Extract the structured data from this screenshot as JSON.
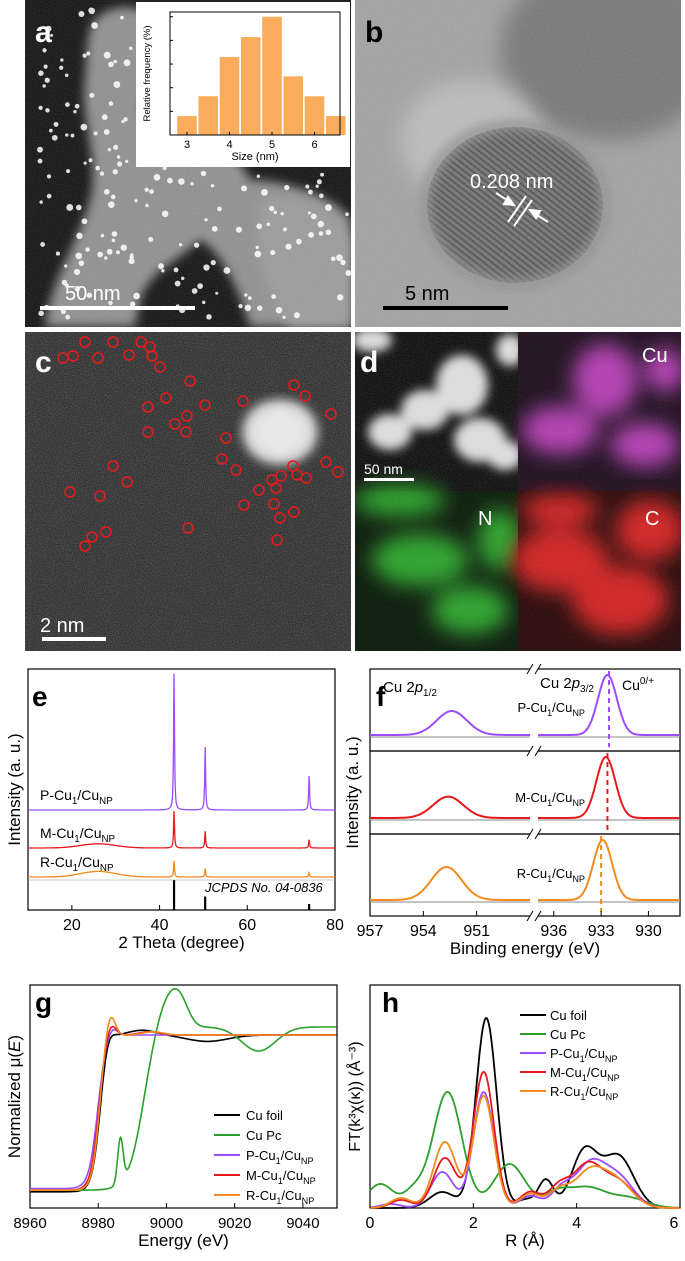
{
  "panels": {
    "a": {
      "letter": "a",
      "scalebar": "50 nm"
    },
    "b": {
      "letter": "b",
      "scalebar": "5 nm",
      "lattice": "0.208 nm"
    },
    "c": {
      "letter": "c",
      "scalebar": "2 nm"
    },
    "d": {
      "letter": "d",
      "scalebar": "50 nm",
      "maps": [
        "Cu",
        "N",
        "C"
      ]
    },
    "e": {
      "letter": "e"
    },
    "f": {
      "letter": "f"
    },
    "g": {
      "letter": "g"
    },
    "h": {
      "letter": "h"
    }
  },
  "colors": {
    "cu_foil": "#000000",
    "cu_pc": "#2ca02c",
    "p_sample": "#9b4dff",
    "m_sample": "#e8191c",
    "r_sample": "#f28a1e",
    "hist_bar": "#f9ad5c",
    "circle": "#e8191c"
  },
  "chart_data": [
    {
      "id": "inset-histogram",
      "type": "bar",
      "categories": [
        3,
        3.5,
        4,
        4.5,
        5,
        5.5,
        6,
        6.5
      ],
      "values": [
        4,
        8.2,
        16.5,
        20.7,
        25,
        12.4,
        8.2,
        4
      ],
      "xlabel": "Size (nm)",
      "ylabel": "Relative frequency (%)",
      "xlim": [
        2.6,
        6.6
      ],
      "ylim": [
        0,
        26
      ],
      "xticks": [
        3,
        4,
        5,
        6
      ],
      "yticks": [
        0,
        5,
        10,
        15,
        20,
        25
      ]
    },
    {
      "id": "xrd",
      "type": "line",
      "xlabel": "2 Theta (degree)",
      "ylabel": "Intensity (a. u.)",
      "xlim": [
        10,
        80
      ],
      "xticks": [
        20,
        40,
        60,
        80
      ],
      "series": [
        {
          "name_main": "P-Cu",
          "sub1": "1",
          "mid": "/Cu",
          "sub2": "NP",
          "color": "#9b4dff",
          "baseline": 0.0,
          "peaks": [
            {
              "x": 43.3,
              "h": 1.0
            },
            {
              "x": 50.4,
              "h": 0.45
            },
            {
              "x": 74.1,
              "h": 0.25
            }
          ]
        },
        {
          "name_main": "M-Cu",
          "sub1": "1",
          "mid": "/Cu",
          "sub2": "NP",
          "color": "#e8191c",
          "baseline": 0.0,
          "peaks": [
            {
              "x": 43.3,
              "h": 0.27
            },
            {
              "x": 50.4,
              "h": 0.12
            },
            {
              "x": 74.1,
              "h": 0.06
            }
          ],
          "hump": {
            "x": 26,
            "h": 0.03
          }
        },
        {
          "name_main": "R-Cu",
          "sub1": "1",
          "mid": "/Cu",
          "sub2": "NP",
          "color": "#f28a1e",
          "baseline": 0.0,
          "peaks": [
            {
              "x": 43.3,
              "h": 0.12
            },
            {
              "x": 50.4,
              "h": 0.06
            },
            {
              "x": 74.1,
              "h": 0.03
            }
          ],
          "hump": {
            "x": 26,
            "h": 0.04
          }
        }
      ],
      "reference": {
        "label": "JCPDS No. 04-0836",
        "lines": [
          {
            "x": 43.3,
            "h": 1.0
          },
          {
            "x": 50.4,
            "h": 0.45
          },
          {
            "x": 74.1,
            "h": 0.2
          }
        ]
      }
    },
    {
      "id": "xps",
      "type": "line",
      "xlabel": "Binding energy (eV)",
      "ylabel": "Intensity (a. u.)",
      "left_range": [
        957,
        948
      ],
      "right_range": [
        937,
        928
      ],
      "xticks_left": [
        957,
        954,
        951
      ],
      "xticks_right": [
        936,
        933,
        930
      ],
      "peak_labels": {
        "p12_main": "Cu 2",
        "p12_italic": "p",
        "p12_sub": "1/2",
        "p32_main": "Cu 2",
        "p32_italic": "p",
        "p32_sub": "3/2",
        "valence": "Cu",
        "valence_sup": "0/+"
      },
      "series": [
        {
          "name_main": "P-Cu",
          "sub1": "1",
          "mid": "/Cu",
          "sub2": "NP",
          "color": "#9b4dff",
          "p12": 952.4,
          "p32": 932.6,
          "ratio": 0.4,
          "dashed": 932.5
        },
        {
          "name_main": "M-Cu",
          "sub1": "1",
          "mid": "/Cu",
          "sub2": "NP",
          "color": "#e8191c",
          "p12": 952.6,
          "p32": 932.7,
          "ratio": 0.35,
          "dashed": 932.6
        },
        {
          "name_main": "R-Cu",
          "sub1": "1",
          "mid": "/Cu",
          "sub2": "NP",
          "color": "#f28a1e",
          "p12": 952.7,
          "p32": 932.9,
          "ratio": 0.55,
          "dashed": 933.0
        }
      ]
    },
    {
      "id": "xanes",
      "type": "line",
      "xlabel": "Energy (eV)",
      "ylabel_main": "Normalized μ(",
      "ylabel_italic": "E",
      "ylabel_end": ")",
      "xlim": [
        8960,
        9050
      ],
      "xticks": [
        8960,
        8980,
        9000,
        9020,
        9040
      ],
      "legend": [
        {
          "main": "Cu foil",
          "color": "#000000"
        },
        {
          "main": "Cu Pc",
          "color": "#2ca02c"
        },
        {
          "main": "P-Cu",
          "sub1": "1",
          "mid": "/Cu",
          "sub2": "NP",
          "color": "#9b4dff"
        },
        {
          "main": "M-Cu",
          "sub1": "1",
          "mid": "/Cu",
          "sub2": "NP",
          "color": "#e8191c"
        },
        {
          "main": "R-Cu",
          "sub1": "1",
          "mid": "/Cu",
          "sub2": "NP",
          "color": "#f28a1e"
        }
      ]
    },
    {
      "id": "exafs",
      "type": "line",
      "xlabel": "R (Å)",
      "ylabel": "FT(k³χ(κ)) (Å⁻³)",
      "xlim": [
        0,
        6
      ],
      "xticks": [
        0,
        2,
        4,
        6
      ],
      "legend": [
        {
          "main": "Cu foil",
          "color": "#000000"
        },
        {
          "main": "Cu Pc",
          "color": "#2ca02c"
        },
        {
          "main": "P-Cu",
          "sub1": "1",
          "mid": "/Cu",
          "sub2": "NP",
          "color": "#9b4dff"
        },
        {
          "main": "M-Cu",
          "sub1": "1",
          "mid": "/Cu",
          "sub2": "NP",
          "color": "#e8191c"
        },
        {
          "main": "R-Cu",
          "sub1": "1",
          "mid": "/Cu",
          "sub2": "NP",
          "color": "#f28a1e"
        }
      ]
    }
  ]
}
